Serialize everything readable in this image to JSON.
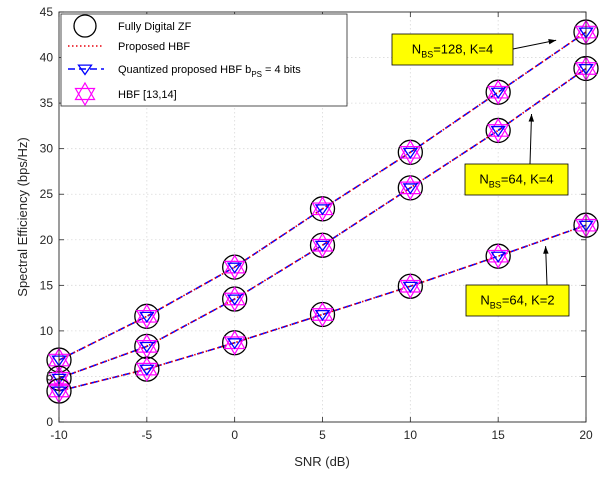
{
  "chart_data": {
    "type": "line",
    "title": "",
    "xlabel": "SNR (dB)",
    "ylabel": "Spectral Efficiency (bps/Hz)",
    "xlim": [
      -10,
      20
    ],
    "ylim": [
      0,
      45
    ],
    "xticks": [
      -10,
      -5,
      0,
      5,
      10,
      15,
      20
    ],
    "yticks": [
      0,
      5,
      10,
      15,
      20,
      25,
      30,
      35,
      40,
      45
    ],
    "grid": true,
    "legend_position": "top-left",
    "x": [
      -10,
      -5,
      0,
      5,
      10,
      15,
      20
    ],
    "configurations": [
      {
        "label_main": "N",
        "label_sub": "BS",
        "label_rest": "=128, K=4",
        "values": [
          6.8,
          11.6,
          17.0,
          23.4,
          29.6,
          36.2,
          42.8
        ]
      },
      {
        "label_main": "N",
        "label_sub": "BS",
        "label_rest": "=64, K=4",
        "values": [
          4.8,
          8.3,
          13.5,
          19.4,
          25.7,
          32.0,
          38.8
        ]
      },
      {
        "label_main": "N",
        "label_sub": "BS",
        "label_rest": "=64, K=2",
        "values": [
          3.4,
          5.8,
          8.7,
          11.8,
          14.9,
          18.2,
          21.6
        ]
      }
    ],
    "series": [
      {
        "name": "Fully Digital ZF",
        "marker": "circle",
        "color": "#000000"
      },
      {
        "name": "Proposed HBF",
        "line": "dotted",
        "color": "#e8000b"
      },
      {
        "name": "Quantized proposed HBF b",
        "name_sub": "PS",
        "name_rest": " = 4 bits",
        "marker": "triangle-down",
        "line": "dashed",
        "color": "#0000ff"
      },
      {
        "name": "HBF [13,14]",
        "marker": "hexagram",
        "color": "#ff00ff"
      }
    ],
    "annotation_fill": "#ffff00"
  }
}
